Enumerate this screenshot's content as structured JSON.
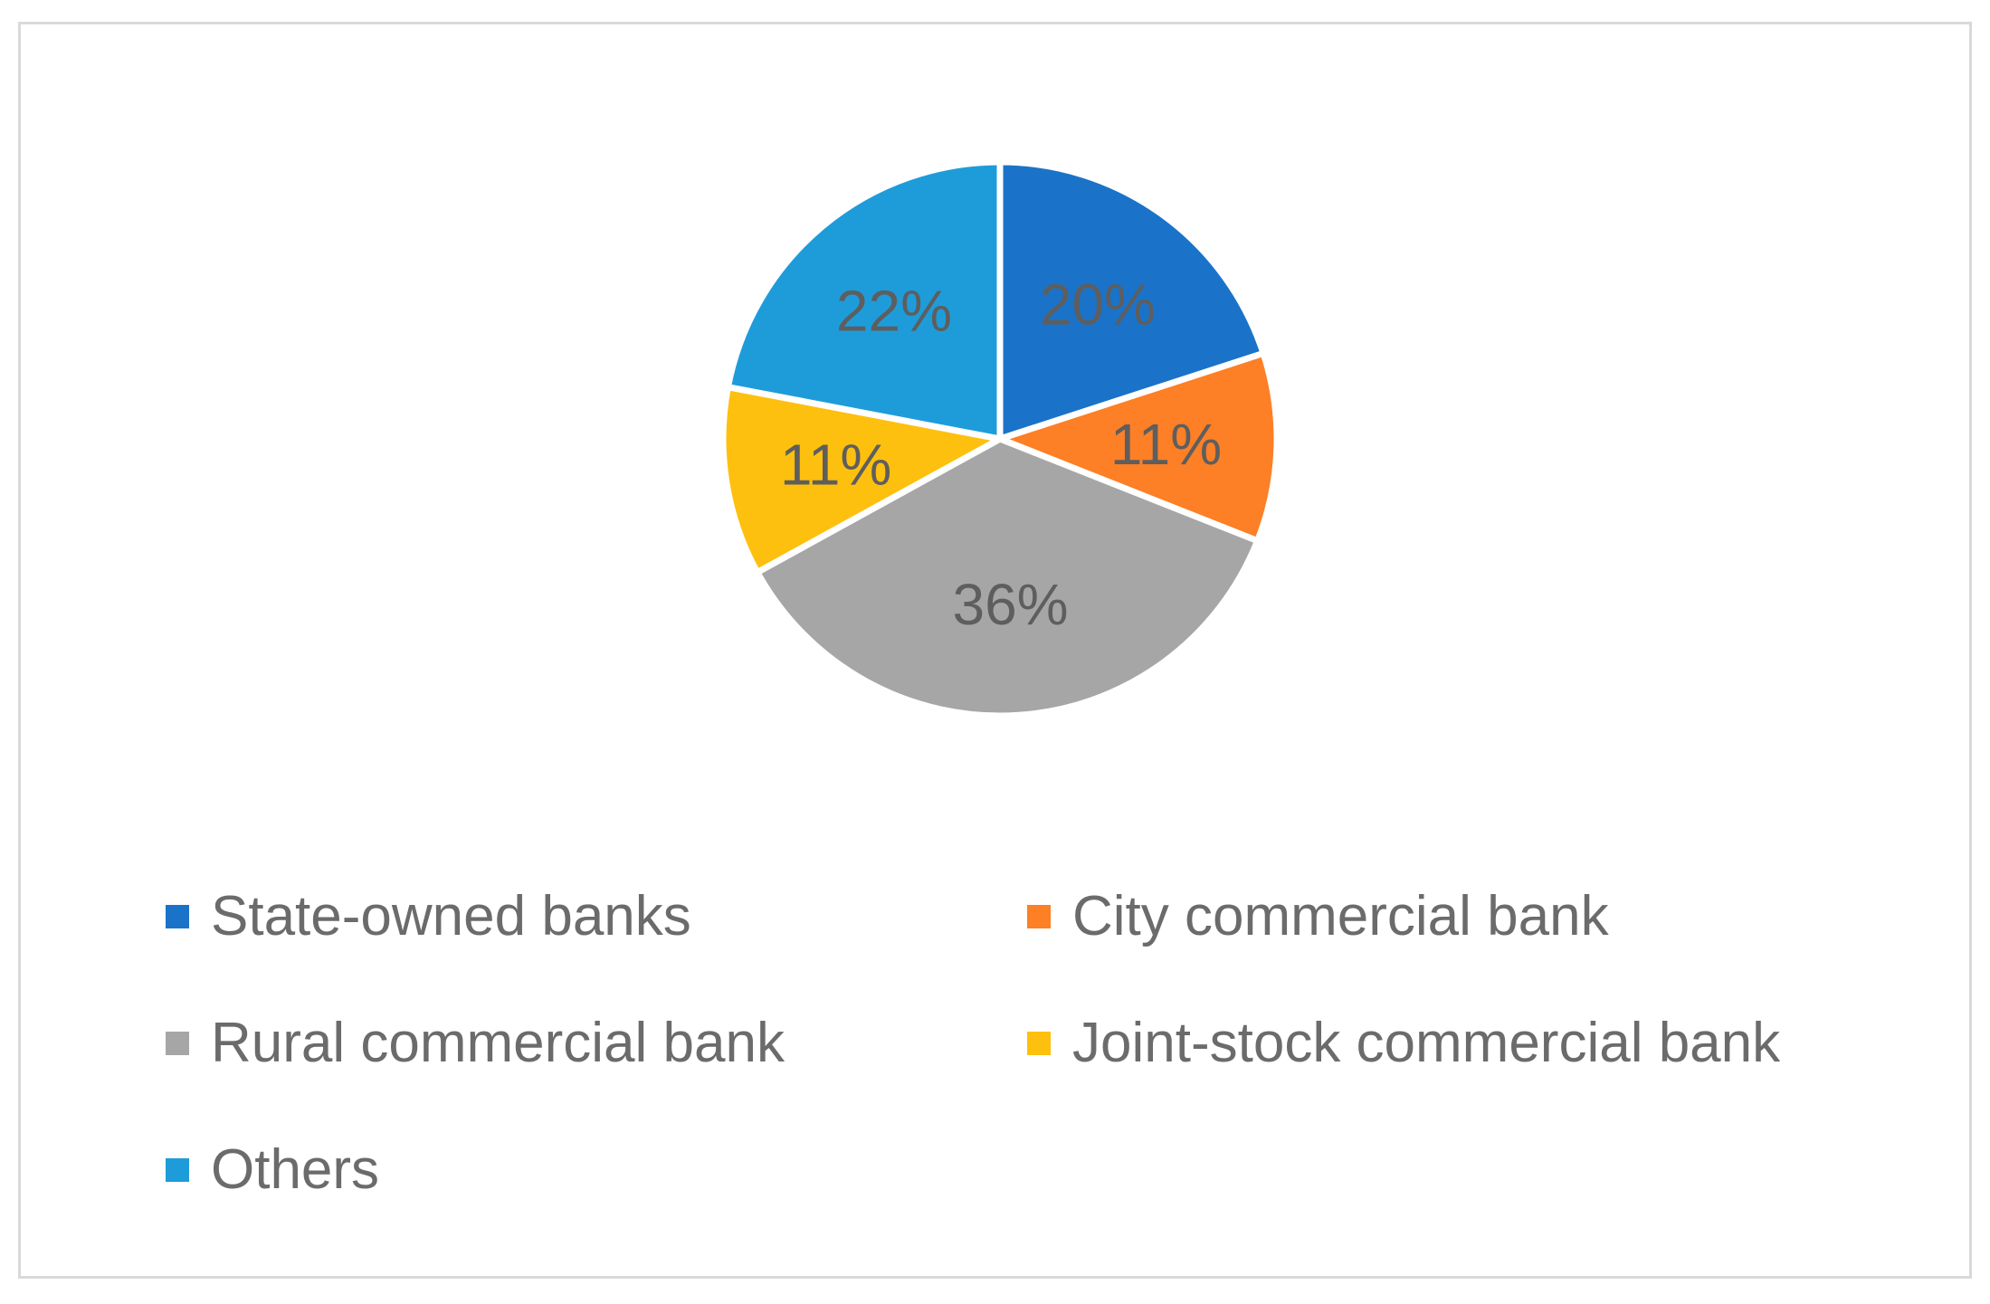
{
  "chart_data": {
    "type": "pie",
    "title": "",
    "categories": [
      "State-owned banks",
      "City commercial bank",
      "Rural commercial bank",
      "Joint-stock commercial bank",
      "Others"
    ],
    "values": [
      20,
      11,
      36,
      11,
      22
    ],
    "data_labels": [
      "20%",
      "11%",
      "36%",
      "11%",
      "22%"
    ],
    "colors": [
      "#1a73c8",
      "#fd7f26",
      "#a6a6a6",
      "#fec00e",
      "#1e9cda"
    ],
    "legend_position": "bottom",
    "grid": false
  }
}
